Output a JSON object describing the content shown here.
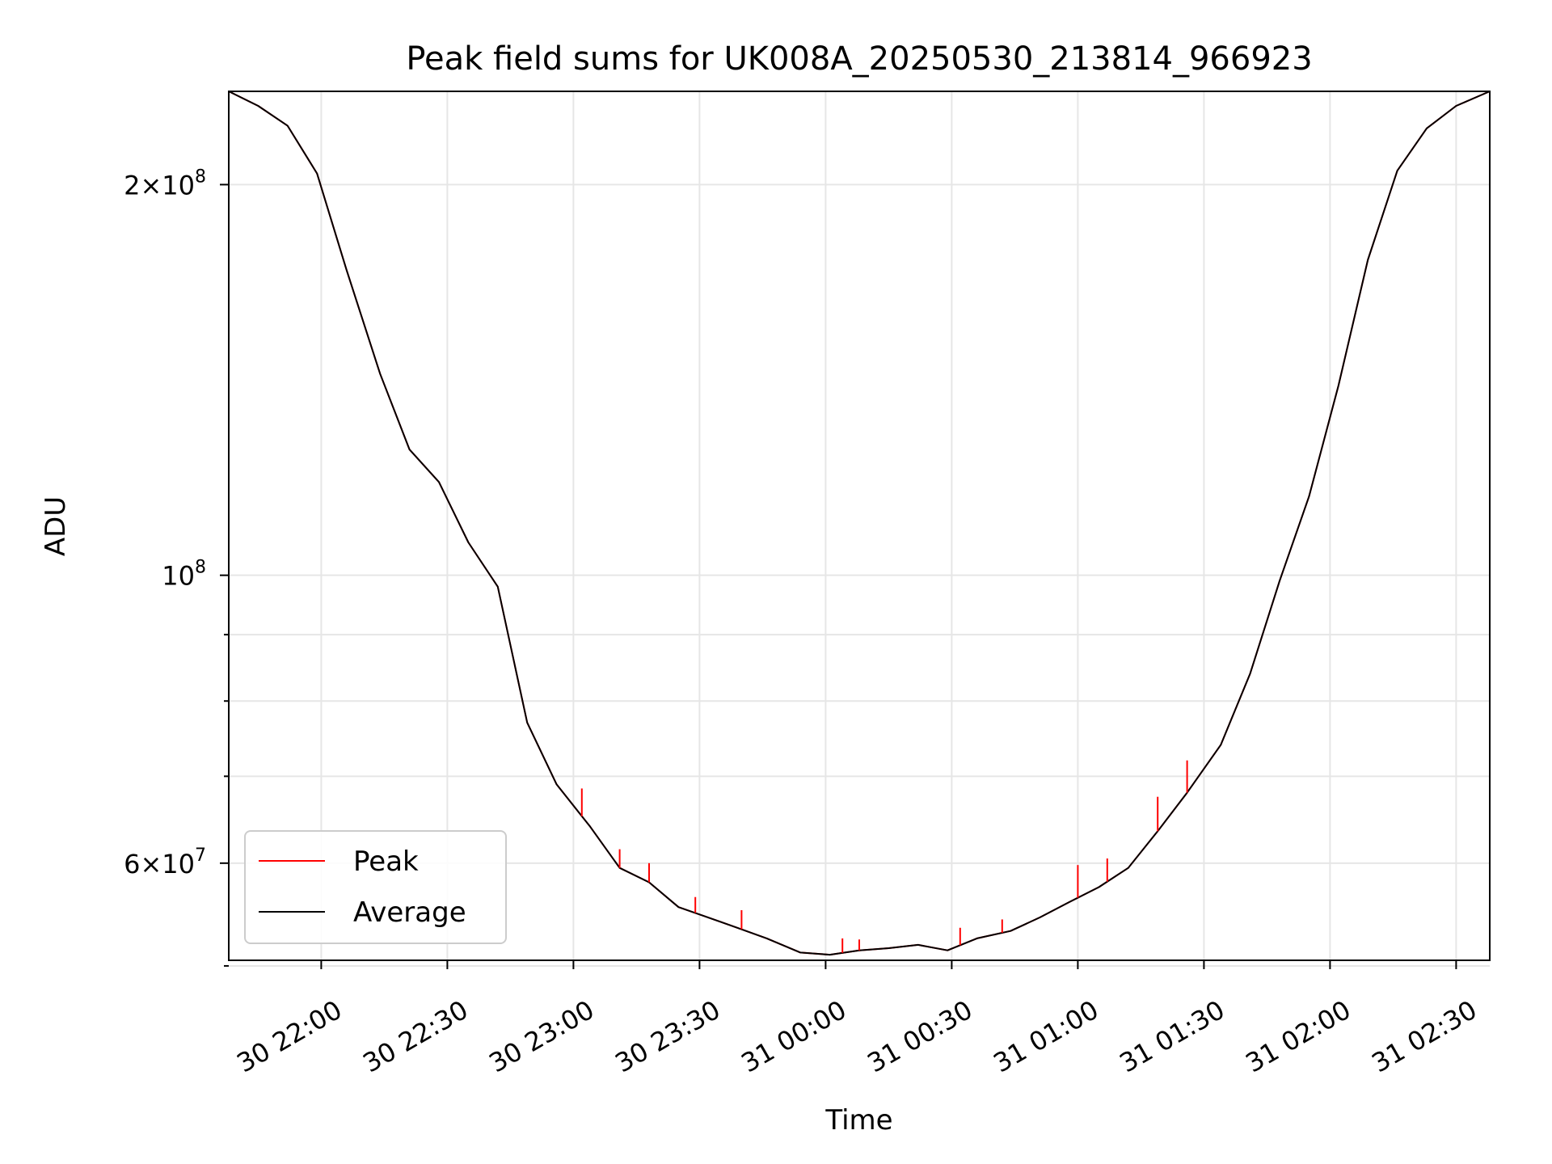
{
  "chart_data": {
    "type": "line",
    "title": "Peak field sums for UK008A_20250530_213814_966923",
    "xlabel": "Time",
    "ylabel": "ADU",
    "yscale": "log",
    "grid": true,
    "legend_position": "lower-left",
    "xlim": [
      "2025-05-30 21:38",
      "2025-05-31 02:38"
    ],
    "ylim": [
      50500000,
      236000000
    ],
    "x_ticks": [
      {
        "value": "2025-05-30 22:00",
        "label": "30 22:00"
      },
      {
        "value": "2025-05-30 22:30",
        "label": "30 22:30"
      },
      {
        "value": "2025-05-30 23:00",
        "label": "30 23:00"
      },
      {
        "value": "2025-05-30 23:30",
        "label": "30 23:30"
      },
      {
        "value": "2025-05-31 00:00",
        "label": "31 00:00"
      },
      {
        "value": "2025-05-31 00:30",
        "label": "31 00:30"
      },
      {
        "value": "2025-05-31 01:00",
        "label": "31 01:00"
      },
      {
        "value": "2025-05-31 01:30",
        "label": "31 01:30"
      },
      {
        "value": "2025-05-31 02:00",
        "label": "31 02:00"
      },
      {
        "value": "2025-05-31 02:30",
        "label": "31 02:30"
      }
    ],
    "y_major_ticks": [
      {
        "value": 200000000,
        "mantissa": "2",
        "exponent": "8"
      },
      {
        "value": 100000000,
        "mantissa": "",
        "exponent": "8"
      },
      {
        "value": 60000000,
        "mantissa": "6",
        "exponent": "7"
      }
    ],
    "y_minor_ticks": [
      50000000,
      70000000,
      80000000,
      90000000
    ],
    "x": [
      "2025-05-30 21:38",
      "2025-05-30 21:45",
      "2025-05-30 21:52",
      "2025-05-30 21:59",
      "2025-05-30 22:06",
      "2025-05-30 22:14",
      "2025-05-30 22:21",
      "2025-05-30 22:28",
      "2025-05-30 22:35",
      "2025-05-30 22:42",
      "2025-05-30 22:49",
      "2025-05-30 22:56",
      "2025-05-30 23:04",
      "2025-05-30 23:11",
      "2025-05-30 23:18",
      "2025-05-30 23:25",
      "2025-05-30 23:32",
      "2025-05-30 23:39",
      "2025-05-30 23:46",
      "2025-05-30 23:54",
      "2025-05-31 00:01",
      "2025-05-31 00:08",
      "2025-05-31 00:15",
      "2025-05-31 00:22",
      "2025-05-31 00:29",
      "2025-05-31 00:36",
      "2025-05-31 00:44",
      "2025-05-31 00:51",
      "2025-05-31 00:58",
      "2025-05-31 01:05",
      "2025-05-31 01:12",
      "2025-05-31 01:19",
      "2025-05-31 01:26",
      "2025-05-31 01:34",
      "2025-05-31 01:41",
      "2025-05-31 01:48",
      "2025-05-31 01:55",
      "2025-05-31 02:02",
      "2025-05-31 02:09",
      "2025-05-31 02:16",
      "2025-05-31 02:23",
      "2025-05-31 02:30",
      "2025-05-31 02:38"
    ],
    "series": [
      {
        "name": "Peak",
        "color": "#ff0000",
        "values": [
          236000000,
          230000000,
          222000000,
          204000000,
          172000000,
          143000000,
          125000000,
          118000000,
          106000000,
          98000000,
          77000000,
          69000000,
          64000000,
          59500000,
          58000000,
          55500000,
          54500000,
          53500000,
          52500000,
          51200000,
          51000000,
          51400000,
          51600000,
          51900000,
          51400000,
          52500000,
          53200000,
          54500000,
          56000000,
          57500000,
          59500000,
          63500000,
          68000000,
          74000000,
          84000000,
          99000000,
          115000000,
          140000000,
          175000000,
          205000000,
          221000000,
          230000000,
          236000000
        ],
        "spikes": [
          {
            "x": "2025-05-30 23:02",
            "value": 68500000
          },
          {
            "x": "2025-05-30 23:11",
            "value": 61500000
          },
          {
            "x": "2025-05-30 23:18",
            "value": 60000000
          },
          {
            "x": "2025-05-30 23:29",
            "value": 56500000
          },
          {
            "x": "2025-05-30 23:40",
            "value": 55200000
          },
          {
            "x": "2025-05-31 00:04",
            "value": 52500000
          },
          {
            "x": "2025-05-31 00:08",
            "value": 52400000
          },
          {
            "x": "2025-05-31 00:32",
            "value": 53500000
          },
          {
            "x": "2025-05-31 00:42",
            "value": 54300000
          },
          {
            "x": "2025-05-31 01:00",
            "value": 59800000
          },
          {
            "x": "2025-05-31 01:07",
            "value": 60500000
          },
          {
            "x": "2025-05-31 01:19",
            "value": 67500000
          },
          {
            "x": "2025-05-31 01:26",
            "value": 72000000
          }
        ]
      },
      {
        "name": "Average",
        "color": "#000000",
        "values": [
          236000000,
          230000000,
          222000000,
          204000000,
          172000000,
          143000000,
          125000000,
          118000000,
          106000000,
          98000000,
          77000000,
          69000000,
          64000000,
          59500000,
          58000000,
          55500000,
          54500000,
          53500000,
          52500000,
          51200000,
          51000000,
          51400000,
          51600000,
          51900000,
          51400000,
          52500000,
          53200000,
          54500000,
          56000000,
          57500000,
          59500000,
          63500000,
          68000000,
          74000000,
          84000000,
          99000000,
          115000000,
          140000000,
          175000000,
          205000000,
          221000000,
          230000000,
          236000000
        ]
      }
    ]
  }
}
